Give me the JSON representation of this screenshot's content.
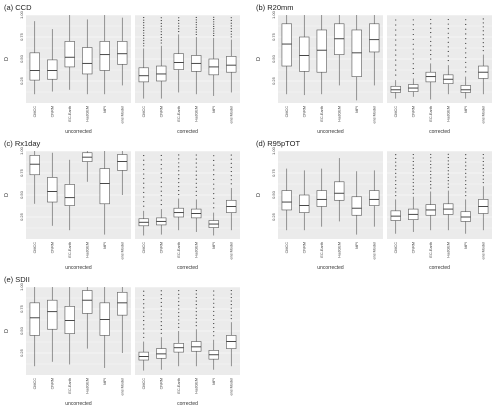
{
  "chart_data": [
    {
      "type": "boxplot",
      "title": "(a) CCD",
      "ylabel": "D",
      "ylim": [
        0,
        1
      ],
      "yticks": [
        "0.25",
        "0.50",
        "0.75",
        "1.00"
      ],
      "groups": [
        {
          "label": "uncorrected",
          "categories": [
            "CMCC",
            "CNRM",
            "EC-Earth",
            "HadGEM",
            "MPI",
            "ens Model"
          ],
          "boxes": [
            {
              "min": 0.1,
              "q1": 0.26,
              "median": 0.37,
              "q3": 0.57,
              "max": 0.93,
              "outliers_high": 0
            },
            {
              "min": 0.13,
              "q1": 0.27,
              "median": 0.37,
              "q3": 0.49,
              "max": 0.84,
              "outliers_high": 0
            },
            {
              "min": 0.15,
              "q1": 0.41,
              "median": 0.52,
              "q3": 0.7,
              "max": 1.0,
              "outliers_high": 0
            },
            {
              "min": 0.1,
              "q1": 0.33,
              "median": 0.45,
              "q3": 0.63,
              "max": 0.95,
              "outliers_high": 0
            },
            {
              "min": 0.1,
              "q1": 0.37,
              "median": 0.55,
              "q3": 0.7,
              "max": 1.0,
              "outliers_high": 0
            },
            {
              "min": 0.2,
              "q1": 0.44,
              "median": 0.56,
              "q3": 0.7,
              "max": 0.97,
              "outliers_high": 0
            }
          ]
        },
        {
          "label": "corrected",
          "categories": [
            "CMCC",
            "CNRM",
            "EC-Earth",
            "HadGEM",
            "MPI",
            "ens Model"
          ],
          "boxes": [
            {
              "min": 0.05,
              "q1": 0.24,
              "median": 0.31,
              "q3": 0.4,
              "max": 0.62,
              "outliers_high": 12
            },
            {
              "min": 0.05,
              "q1": 0.25,
              "median": 0.33,
              "q3": 0.42,
              "max": 0.65,
              "outliers_high": 10
            },
            {
              "min": 0.12,
              "q1": 0.38,
              "median": 0.46,
              "q3": 0.56,
              "max": 0.78,
              "outliers_high": 6
            },
            {
              "min": 0.1,
              "q1": 0.36,
              "median": 0.45,
              "q3": 0.54,
              "max": 0.75,
              "outliers_high": 8
            },
            {
              "min": 0.08,
              "q1": 0.32,
              "median": 0.41,
              "q3": 0.5,
              "max": 0.74,
              "outliers_high": 9
            },
            {
              "min": 0.12,
              "q1": 0.35,
              "median": 0.43,
              "q3": 0.53,
              "max": 0.72,
              "outliers_high": 8
            }
          ]
        }
      ]
    },
    {
      "type": "boxplot",
      "title": "(b) R20mm",
      "ylabel": "D",
      "ylim": [
        0,
        1
      ],
      "yticks": [
        "0.25",
        "0.50",
        "0.75",
        "1.00"
      ],
      "groups": [
        {
          "label": "uncorrected",
          "categories": [
            "CMCC",
            "CNRM",
            "EC-Earth",
            "HadGEM",
            "MPI",
            "ens Model"
          ],
          "boxes": [
            {
              "min": 0.1,
              "q1": 0.42,
              "median": 0.67,
              "q3": 0.9,
              "max": 1.0,
              "outliers_high": 0
            },
            {
              "min": 0.09,
              "q1": 0.36,
              "median": 0.54,
              "q3": 0.75,
              "max": 1.0,
              "outliers_high": 0
            },
            {
              "min": 0.1,
              "q1": 0.35,
              "median": 0.6,
              "q3": 0.83,
              "max": 1.0,
              "outliers_high": 0
            },
            {
              "min": 0.2,
              "q1": 0.55,
              "median": 0.73,
              "q3": 0.9,
              "max": 1.0,
              "outliers_high": 0
            },
            {
              "min": 0.03,
              "q1": 0.3,
              "median": 0.57,
              "q3": 0.83,
              "max": 1.0,
              "outliers_high": 0
            },
            {
              "min": 0.2,
              "q1": 0.58,
              "median": 0.72,
              "q3": 0.9,
              "max": 1.0,
              "outliers_high": 0
            }
          ]
        },
        {
          "label": "corrected",
          "categories": [
            "CMCC",
            "CNRM",
            "EC-Earth",
            "HadGEM",
            "MPI",
            "ens Model"
          ],
          "boxes": [
            {
              "min": 0.05,
              "q1": 0.12,
              "median": 0.15,
              "q3": 0.19,
              "max": 0.26,
              "outliers_high": 12
            },
            {
              "min": 0.07,
              "q1": 0.13,
              "median": 0.17,
              "q3": 0.21,
              "max": 0.28,
              "outliers_high": 12
            },
            {
              "min": 0.04,
              "q1": 0.24,
              "median": 0.3,
              "q3": 0.35,
              "max": 0.45,
              "outliers_high": 10
            },
            {
              "min": 0.1,
              "q1": 0.22,
              "median": 0.27,
              "q3": 0.32,
              "max": 0.43,
              "outliers_high": 10
            },
            {
              "min": 0.05,
              "q1": 0.12,
              "median": 0.15,
              "q3": 0.2,
              "max": 0.3,
              "outliers_high": 12
            },
            {
              "min": 0.1,
              "q1": 0.28,
              "median": 0.35,
              "q3": 0.42,
              "max": 0.55,
              "outliers_high": 9
            }
          ]
        }
      ]
    },
    {
      "type": "boxplot",
      "title": "(c) Rx1day",
      "ylabel": "D",
      "ylim": [
        0,
        1
      ],
      "yticks": [
        "0.25",
        "0.50",
        "0.75",
        "1.00"
      ],
      "groups": [
        {
          "label": "uncorrected",
          "categories": [
            "CMCC",
            "CNRM",
            "EC-Earth",
            "HadGEM",
            "MPI",
            "ens Model"
          ],
          "boxes": [
            {
              "min": 0.4,
              "q1": 0.73,
              "median": 0.85,
              "q3": 0.95,
              "max": 1.0,
              "outliers_high": 0
            },
            {
              "min": 0.15,
              "q1": 0.42,
              "median": 0.54,
              "q3": 0.7,
              "max": 0.98,
              "outliers_high": 0
            },
            {
              "min": 0.1,
              "q1": 0.38,
              "median": 0.47,
              "q3": 0.62,
              "max": 0.9,
              "outliers_high": 0
            },
            {
              "min": 0.65,
              "q1": 0.88,
              "median": 0.93,
              "q3": 0.98,
              "max": 1.0,
              "outliers_high": 0
            },
            {
              "min": 0.05,
              "q1": 0.4,
              "median": 0.63,
              "q3": 0.8,
              "max": 1.0,
              "outliers_high": 0
            },
            {
              "min": 0.5,
              "q1": 0.78,
              "median": 0.88,
              "q3": 0.96,
              "max": 1.0,
              "outliers_high": 0
            }
          ]
        },
        {
          "label": "corrected",
          "categories": [
            "CMCC",
            "CNRM",
            "EC-Earth",
            "HadGEM",
            "MPI",
            "ens Model"
          ],
          "boxes": [
            {
              "min": 0.04,
              "q1": 0.15,
              "median": 0.19,
              "q3": 0.23,
              "max": 0.32,
              "outliers_high": 12
            },
            {
              "min": 0.05,
              "q1": 0.16,
              "median": 0.2,
              "q3": 0.24,
              "max": 0.34,
              "outliers_high": 12
            },
            {
              "min": 0.1,
              "q1": 0.25,
              "median": 0.3,
              "q3": 0.35,
              "max": 0.46,
              "outliers_high": 11
            },
            {
              "min": 0.08,
              "q1": 0.24,
              "median": 0.29,
              "q3": 0.34,
              "max": 0.45,
              "outliers_high": 11
            },
            {
              "min": 0.04,
              "q1": 0.13,
              "median": 0.17,
              "q3": 0.21,
              "max": 0.3,
              "outliers_high": 12
            },
            {
              "min": 0.1,
              "q1": 0.3,
              "median": 0.37,
              "q3": 0.44,
              "max": 0.58,
              "outliers_high": 8
            }
          ]
        }
      ]
    },
    {
      "type": "boxplot",
      "title": "(d) R95pTOT",
      "ylabel": "D",
      "ylim": [
        0,
        1
      ],
      "yticks": [
        "0.25",
        "0.50",
        "0.75",
        "1.00"
      ],
      "groups": [
        {
          "label": "uncorrected",
          "categories": [
            "CMCC",
            "CNRM",
            "EC-Earth",
            "HadGEM",
            "MPI",
            "ens Model"
          ],
          "boxes": [
            {
              "min": 0.1,
              "q1": 0.33,
              "median": 0.42,
              "q3": 0.55,
              "max": 0.8,
              "outliers_high": 0
            },
            {
              "min": 0.1,
              "q1": 0.3,
              "median": 0.38,
              "q3": 0.5,
              "max": 0.78,
              "outliers_high": 0
            },
            {
              "min": 0.14,
              "q1": 0.37,
              "median": 0.45,
              "q3": 0.55,
              "max": 0.8,
              "outliers_high": 0
            },
            {
              "min": 0.2,
              "q1": 0.44,
              "median": 0.52,
              "q3": 0.65,
              "max": 0.92,
              "outliers_high": 0
            },
            {
              "min": 0.05,
              "q1": 0.27,
              "median": 0.35,
              "q3": 0.48,
              "max": 0.77,
              "outliers_high": 0
            },
            {
              "min": 0.14,
              "q1": 0.38,
              "median": 0.45,
              "q3": 0.55,
              "max": 0.78,
              "outliers_high": 0
            }
          ]
        },
        {
          "label": "corrected",
          "categories": [
            "CMCC",
            "CNRM",
            "EC-Earth",
            "HadGEM",
            "MPI",
            "ens Model"
          ],
          "boxes": [
            {
              "min": 0.06,
              "q1": 0.21,
              "median": 0.26,
              "q3": 0.32,
              "max": 0.45,
              "outliers_high": 12
            },
            {
              "min": 0.08,
              "q1": 0.22,
              "median": 0.28,
              "q3": 0.34,
              "max": 0.48,
              "outliers_high": 12
            },
            {
              "min": 0.1,
              "q1": 0.27,
              "median": 0.33,
              "q3": 0.39,
              "max": 0.54,
              "outliers_high": 11
            },
            {
              "min": 0.1,
              "q1": 0.28,
              "median": 0.34,
              "q3": 0.4,
              "max": 0.55,
              "outliers_high": 11
            },
            {
              "min": 0.06,
              "q1": 0.2,
              "median": 0.25,
              "q3": 0.31,
              "max": 0.45,
              "outliers_high": 12
            },
            {
              "min": 0.1,
              "q1": 0.29,
              "median": 0.37,
              "q3": 0.45,
              "max": 0.6,
              "outliers_high": 9
            }
          ]
        }
      ]
    },
    {
      "type": "boxplot",
      "title": "(e) SDII",
      "ylabel": "D",
      "ylim": [
        0,
        1
      ],
      "yticks": [
        "0.25",
        "0.50",
        "0.75",
        "1.00"
      ],
      "groups": [
        {
          "label": "uncorrected",
          "categories": [
            "CMCC",
            "CNRM",
            "EC-Earth",
            "HadGEM",
            "MPI",
            "ens Model"
          ],
          "boxes": [
            {
              "min": 0.1,
              "q1": 0.45,
              "median": 0.65,
              "q3": 0.82,
              "max": 1.0,
              "outliers_high": 0
            },
            {
              "min": 0.15,
              "q1": 0.52,
              "median": 0.72,
              "q3": 0.85,
              "max": 1.0,
              "outliers_high": 0
            },
            {
              "min": 0.12,
              "q1": 0.47,
              "median": 0.62,
              "q3": 0.78,
              "max": 1.0,
              "outliers_high": 0
            },
            {
              "min": 0.3,
              "q1": 0.7,
              "median": 0.85,
              "q3": 0.96,
              "max": 1.0,
              "outliers_high": 0
            },
            {
              "min": 0.08,
              "q1": 0.45,
              "median": 0.63,
              "q3": 0.82,
              "max": 1.0,
              "outliers_high": 0
            },
            {
              "min": 0.25,
              "q1": 0.68,
              "median": 0.82,
              "q3": 0.94,
              "max": 1.0,
              "outliers_high": 0
            }
          ]
        },
        {
          "label": "corrected",
          "categories": [
            "CMCC",
            "CNRM",
            "EC-Earth",
            "HadGEM",
            "MPI",
            "ens Model"
          ],
          "boxes": [
            {
              "min": 0.05,
              "q1": 0.17,
              "median": 0.21,
              "q3": 0.26,
              "max": 0.38,
              "outliers_high": 12
            },
            {
              "min": 0.06,
              "q1": 0.19,
              "median": 0.24,
              "q3": 0.3,
              "max": 0.43,
              "outliers_high": 12
            },
            {
              "min": 0.1,
              "q1": 0.26,
              "median": 0.31,
              "q3": 0.36,
              "max": 0.5,
              "outliers_high": 11
            },
            {
              "min": 0.1,
              "q1": 0.27,
              "median": 0.32,
              "q3": 0.38,
              "max": 0.52,
              "outliers_high": 11
            },
            {
              "min": 0.06,
              "q1": 0.18,
              "median": 0.23,
              "q3": 0.28,
              "max": 0.4,
              "outliers_high": 12
            },
            {
              "min": 0.1,
              "q1": 0.3,
              "median": 0.38,
              "q3": 0.45,
              "max": 0.6,
              "outliers_high": 9
            }
          ]
        }
      ]
    }
  ],
  "colors": {
    "panel_bg": "#ebebeb",
    "grid": "#ffffff",
    "box_fill": "#ffffff",
    "box_stroke": "#555555",
    "outlier": "#111111"
  }
}
